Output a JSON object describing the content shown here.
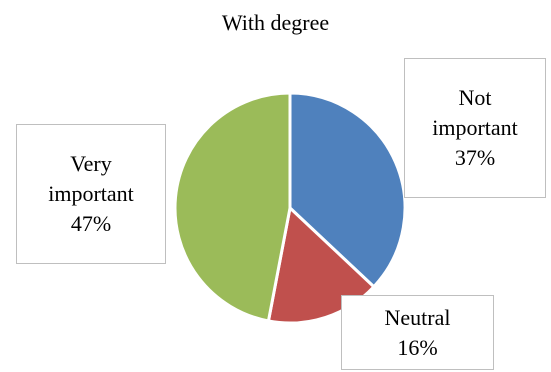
{
  "chart_data": {
    "type": "pie",
    "title": "With degree",
    "slices": [
      {
        "name": "Not important",
        "label_lines": [
          "Not",
          "important"
        ],
        "value": 37,
        "value_label": "37%",
        "color": "#4F81BD"
      },
      {
        "name": "Neutral",
        "label_lines": [
          "Neutral"
        ],
        "value": 16,
        "value_label": "16%",
        "color": "#C0504D"
      },
      {
        "name": "Very important",
        "label_lines": [
          "Very",
          "important"
        ],
        "value": 47,
        "value_label": "47%",
        "color": "#9BBB59"
      }
    ],
    "start_angle": "12 o'clock",
    "direction": "clockwise",
    "slice_border_color": "#FFFFFF",
    "legend": "none (data callout labels)"
  }
}
